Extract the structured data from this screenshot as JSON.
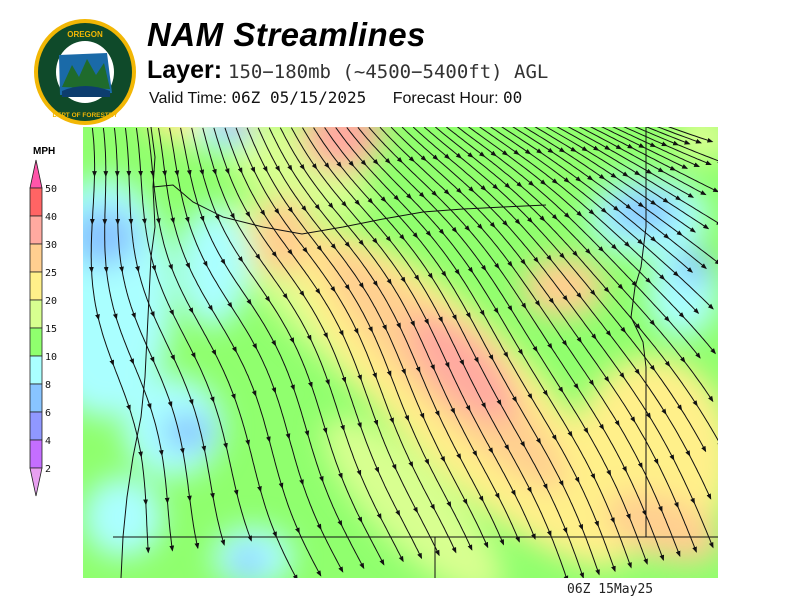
{
  "logo": {
    "text_top": "OREGON",
    "text_bottom": "DEPARTMENT OF FORESTRY"
  },
  "header": {
    "title": "NAM Streamlines",
    "layer_label": "Layer:",
    "layer_value": "150−180mb (~4500−5400ft) AGL",
    "valid_label": "Valid Time:",
    "valid_value": "06Z 05/15/2025",
    "forecast_label": "Forecast Hour:",
    "forecast_value": "00"
  },
  "legend": {
    "unit": "MPH",
    "levels": [
      "50",
      "40",
      "30",
      "25",
      "20",
      "15",
      "10",
      "8",
      "6",
      "4",
      "2"
    ],
    "colors": [
      "#ff6464",
      "#ffaaa0",
      "#ffcf90",
      "#fff08a",
      "#d8ff90",
      "#90ff6e",
      "#aaffff",
      "#88c4ff",
      "#9098ff",
      "#c46eff"
    ],
    "top_arrow_color": "#ff55aa",
    "bottom_arrow_color": "#e8a0f0"
  },
  "map": {
    "variable": "wind speed with streamlines",
    "region": "Oregon / Pacific Northwest"
  },
  "footer": {
    "stamp": "06Z 15May25"
  }
}
